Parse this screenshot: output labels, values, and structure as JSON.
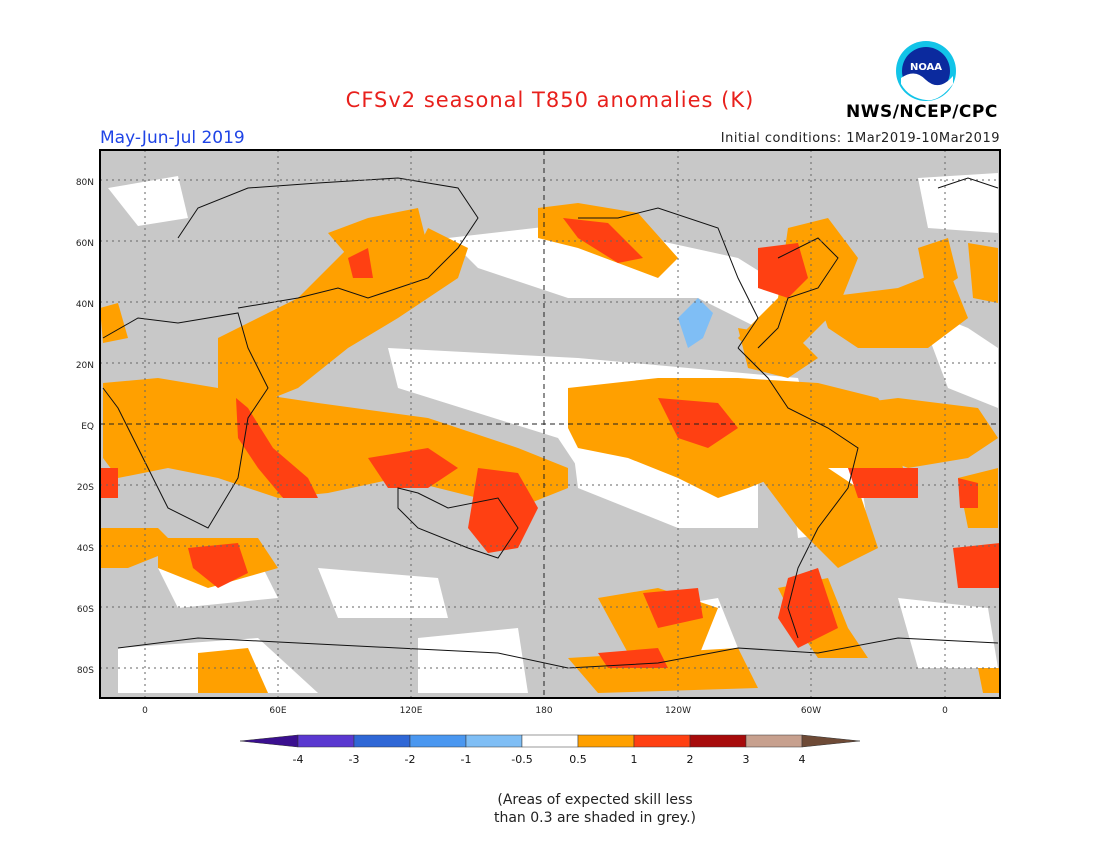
{
  "title": "CFSv2 seasonal T850 anomalies (K)",
  "period": "May-Jun-Jul 2019",
  "initial_conditions": "Initial conditions: 1Mar2019-10Mar2019",
  "agency": "NWS/NCEP/CPC",
  "logo_text": "NOAA",
  "lat_labels": [
    "80N",
    "60N",
    "40N",
    "20N",
    "EQ",
    "20S",
    "40S",
    "60S",
    "80S"
  ],
  "lon_labels": [
    "0",
    "60E",
    "120E",
    "180",
    "120W",
    "60W",
    "0"
  ],
  "colorbar": {
    "labels": [
      "-4",
      "-3",
      "-2",
      "-1",
      "-0.5",
      "0.5",
      "1",
      "2",
      "3",
      "4"
    ],
    "colors": {
      "below_-4": "#3a0f8f",
      "-4_-3": "#5a38d0",
      "-3_-2": "#2f67d6",
      "-2_-1": "#4a97f0",
      "-1_-0.5": "#7fbef5",
      "-0.5_0.5": "#ffffff",
      "0.5_1": "#ffa000",
      "1_2": "#ff4012",
      "2_3": "#a70b0b",
      "3_4": "#c7a08e",
      "above_4": "#6e4a36"
    }
  },
  "low_skill_color": "#c8c8c8",
  "note_line1": "(Areas of expected skill less",
  "note_line2": "than 0.3 are shaded in grey.)"
}
